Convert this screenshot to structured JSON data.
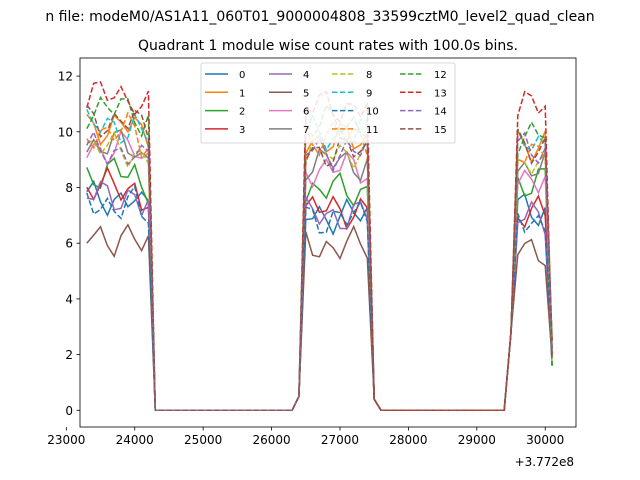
{
  "figure": {
    "suptitle": "n file: modeM0/AS1A11_060T01_9000004808_33599cztM0_level2_quad_clean",
    "offset_label": "+3.772e8"
  },
  "chart_data": {
    "type": "line",
    "title": "Quadrant 1 module wise count rates with 100.0s bins.",
    "xlabel": "",
    "ylabel": "",
    "x_offset": 377200000,
    "xlim": [
      23200,
      30450
    ],
    "ylim": [
      -0.6,
      12.65
    ],
    "xticks": [
      23000,
      24000,
      25000,
      26000,
      27000,
      28000,
      29000,
      30000
    ],
    "yticks": [
      0,
      2,
      4,
      6,
      8,
      10,
      12
    ],
    "grid": false,
    "legend_placement": "top-center",
    "legend_columns": 4,
    "x": [
      23300,
      23400,
      23500,
      23600,
      23700,
      23800,
      23900,
      24000,
      24100,
      24200,
      24300,
      24400,
      24500,
      24600,
      24700,
      24800,
      24900,
      25000,
      25100,
      25200,
      25300,
      25400,
      25500,
      25600,
      25700,
      25800,
      25900,
      26000,
      26100,
      26200,
      26300,
      26400,
      26500,
      26600,
      26700,
      26800,
      26900,
      27000,
      27100,
      27200,
      27300,
      27400,
      27500,
      27600,
      27700,
      27800,
      27900,
      28000,
      28100,
      28200,
      28300,
      28400,
      28500,
      28600,
      28700,
      28800,
      28900,
      29000,
      29100,
      29200,
      29300,
      29400,
      29500,
      29600,
      29700,
      29800,
      29900,
      30000,
      30100
    ],
    "series": [
      {
        "name": "0",
        "color": "#1f77b4",
        "dash": "solid",
        "base1": 7.6,
        "base2": 7.0,
        "base3": 7.2
      },
      {
        "name": "1",
        "color": "#ff7f0e",
        "dash": "solid",
        "base1": 10.2,
        "base2": 9.7,
        "base3": 9.6
      },
      {
        "name": "2",
        "color": "#2ca02c",
        "dash": "solid",
        "base1": 8.5,
        "base2": 7.9,
        "base3": 8.2
      },
      {
        "name": "3",
        "color": "#d62728",
        "dash": "solid",
        "base1": 8.0,
        "base2": 7.2,
        "base3": 7.0
      },
      {
        "name": "4",
        "color": "#9467bd",
        "dash": "solid",
        "base1": 7.7,
        "base2": 7.0,
        "base3": 6.9
      },
      {
        "name": "5",
        "color": "#8c564b",
        "dash": "solid",
        "base1": 6.2,
        "base2": 5.9,
        "base3": 5.8
      },
      {
        "name": "6",
        "color": "#e377c2",
        "dash": "solid",
        "base1": 9.4,
        "base2": 8.7,
        "base3": 8.4
      },
      {
        "name": "7",
        "color": "#7f7f7f",
        "dash": "solid",
        "base1": 9.5,
        "base2": 8.9,
        "base3": 8.7
      },
      {
        "name": "8",
        "color": "#bcbd22",
        "dash": "dashed",
        "base1": 9.4,
        "base2": 9.3,
        "base3": 8.7
      },
      {
        "name": "9",
        "color": "#17becf",
        "dash": "dashed",
        "base1": 10.2,
        "base2": 9.9,
        "base3": 9.5
      },
      {
        "name": "10",
        "color": "#1f77b4",
        "dash": "dashed",
        "base1": 7.4,
        "base2": 6.9,
        "base3": 6.8
      },
      {
        "name": "11",
        "color": "#ff7f0e",
        "dash": "dashed",
        "base1": 10.0,
        "base2": 9.8,
        "base3": 9.4
      },
      {
        "name": "12",
        "color": "#2ca02c",
        "dash": "dashed",
        "base1": 10.8,
        "base2": 10.3,
        "base3": 9.9
      },
      {
        "name": "13",
        "color": "#d62728",
        "dash": "dashed",
        "base1": 11.3,
        "base2": 10.9,
        "base3": 10.9
      },
      {
        "name": "14",
        "color": "#9467bd",
        "dash": "dashed",
        "base1": 9.3,
        "base2": 9.3,
        "base3": 9.3
      },
      {
        "name": "15",
        "color": "#8c564b",
        "dash": "dashed",
        "base1": 10.4,
        "base2": 9.3,
        "base3": 9.5
      }
    ]
  }
}
